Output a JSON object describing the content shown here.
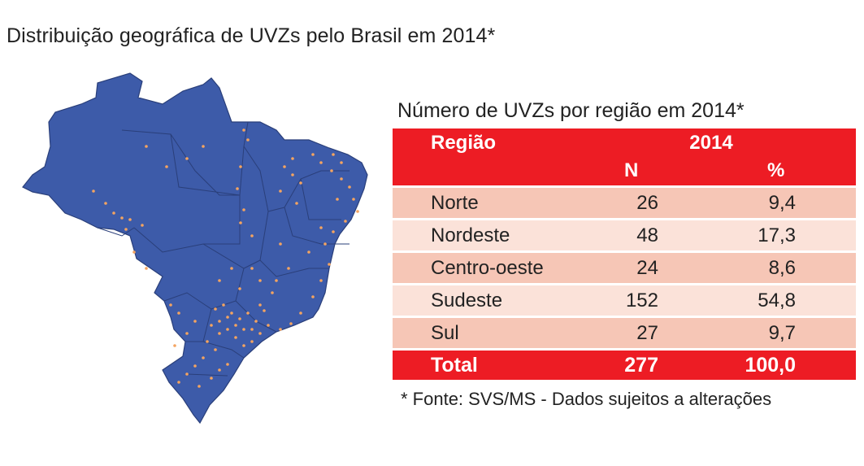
{
  "title": "Distribuição geográfica de UVZs pelo Brasil em 2014*",
  "map": {
    "fill_color": "#3d5ba9",
    "border_color": "#2a3f7a",
    "dot_color": "#f4a460"
  },
  "table": {
    "title": "Número de UVZs por região em 2014*",
    "header_col1": "Região",
    "header_year": "2014",
    "header_n": "N",
    "header_pct": "%",
    "rows": [
      {
        "regiao": "Norte",
        "n": "26",
        "pct": "9,4"
      },
      {
        "regiao": "Nordeste",
        "n": "48",
        "pct": "17,3"
      },
      {
        "regiao": "Centro-oeste",
        "n": "24",
        "pct": "8,6"
      },
      {
        "regiao": "Sudeste",
        "n": "152",
        "pct": "54,8"
      },
      {
        "regiao": "Sul",
        "n": "27",
        "pct": "9,7"
      }
    ],
    "total": {
      "regiao": "Total",
      "n": "277",
      "pct": "100,0"
    },
    "header_color": "#ed1c24",
    "row_colors": [
      "#f6c6b6",
      "#fbe2d9"
    ]
  },
  "footnote": "* Fonte: SVS/MS - Dados sujeitos a alterações",
  "chart_data": {
    "type": "table",
    "title": "Número de UVZs por região em 2014*",
    "columns": [
      "Região",
      "N",
      "%"
    ],
    "categories": [
      "Norte",
      "Nordeste",
      "Centro-oeste",
      "Sudeste",
      "Sul"
    ],
    "series": [
      {
        "name": "N",
        "values": [
          26,
          48,
          24,
          152,
          27
        ]
      },
      {
        "name": "%",
        "values": [
          9.4,
          17.3,
          8.6,
          54.8,
          9.7
        ]
      }
    ],
    "total": {
      "n": 277,
      "pct": 100.0
    }
  }
}
